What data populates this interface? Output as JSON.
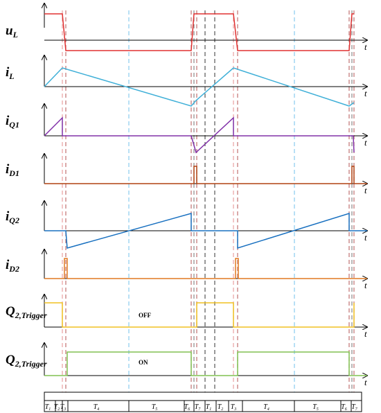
{
  "rows": [
    {
      "symbol": "u",
      "subscript": "L",
      "axis_label": "t"
    },
    {
      "symbol": "i",
      "subscript": "L",
      "axis_label": "t"
    },
    {
      "symbol": "i",
      "subscript": "Q1",
      "axis_label": "t"
    },
    {
      "symbol": "i",
      "subscript": "D1",
      "axis_label": "t"
    },
    {
      "symbol": "i",
      "subscript": "Q2",
      "axis_label": "t"
    },
    {
      "symbol": "i",
      "subscript": "D2",
      "axis_label": "t"
    },
    {
      "symbol": "Q",
      "subscript": "2,Trigger",
      "axis_label": "t"
    },
    {
      "symbol": "Q",
      "subscript": "2,Trigger",
      "axis_label": "t"
    }
  ],
  "annotations": {
    "off": "OFF",
    "on": "ON"
  },
  "intervals": [
    {
      "symbol": "T",
      "subscript": "1"
    },
    {
      "symbol": "T",
      "subscript": "2"
    },
    {
      "symbol": "T",
      "subscript": "3"
    },
    {
      "symbol": "T",
      "subscript": "4"
    },
    {
      "symbol": "T",
      "subscript": "5"
    },
    {
      "symbol": "T",
      "subscript": "6"
    },
    {
      "symbol": "T",
      "subscript": "7"
    },
    {
      "symbol": "T",
      "subscript": "1"
    },
    {
      "symbol": "T",
      "subscript": "2"
    },
    {
      "symbol": "T",
      "subscript": "3"
    },
    {
      "symbol": "T",
      "subscript": "4"
    },
    {
      "symbol": "T",
      "subscript": "5"
    },
    {
      "symbol": "T",
      "subscript": "6"
    },
    {
      "symbol": "T",
      "subscript": "7"
    }
  ]
}
